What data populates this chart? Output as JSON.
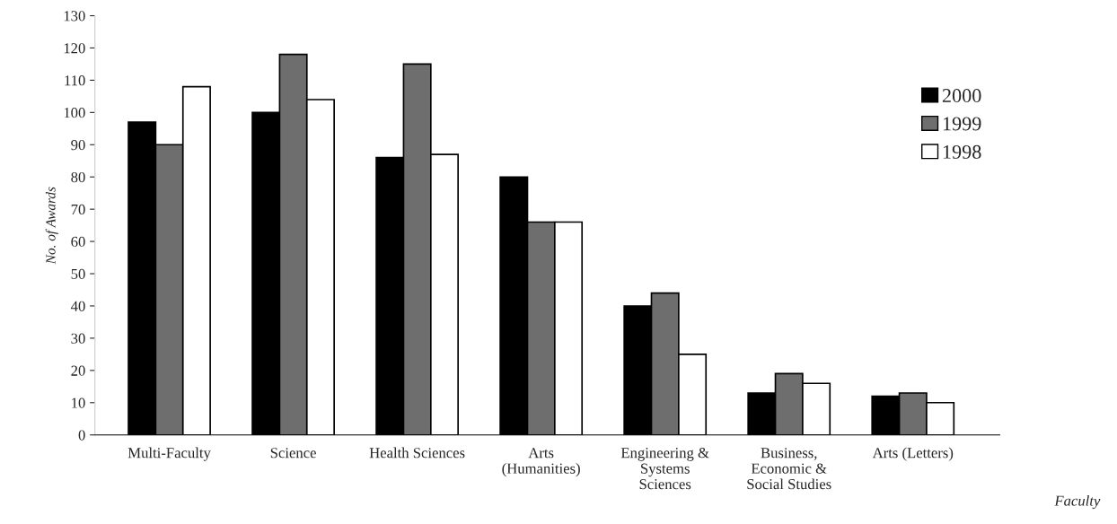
{
  "chart_data": {
    "type": "bar",
    "categories": [
      "Multi-Faculty",
      "Science",
      "Health Sciences",
      "Arts\n(Humanities)",
      "Engineering &\nSystems\nSciences",
      "Business,\nEconomic &\nSocial Studies",
      "Arts (Letters)"
    ],
    "series": [
      {
        "name": "2000",
        "color": "#000000",
        "values": [
          97,
          100,
          86,
          80,
          40,
          13,
          12
        ]
      },
      {
        "name": "1999",
        "color": "#6e6e6e",
        "values": [
          90,
          118,
          115,
          66,
          44,
          19,
          13
        ]
      },
      {
        "name": "1998",
        "color": "#ffffff",
        "values": [
          108,
          104,
          87,
          66,
          25,
          16,
          10
        ]
      }
    ],
    "ylabel": "No. of Awards",
    "xlabel": "Faculty",
    "ylim": [
      0,
      130
    ],
    "yticks": [
      0,
      10,
      20,
      30,
      40,
      50,
      60,
      70,
      80,
      90,
      100,
      110,
      120,
      130
    ],
    "legend": "top right",
    "grid": false
  }
}
